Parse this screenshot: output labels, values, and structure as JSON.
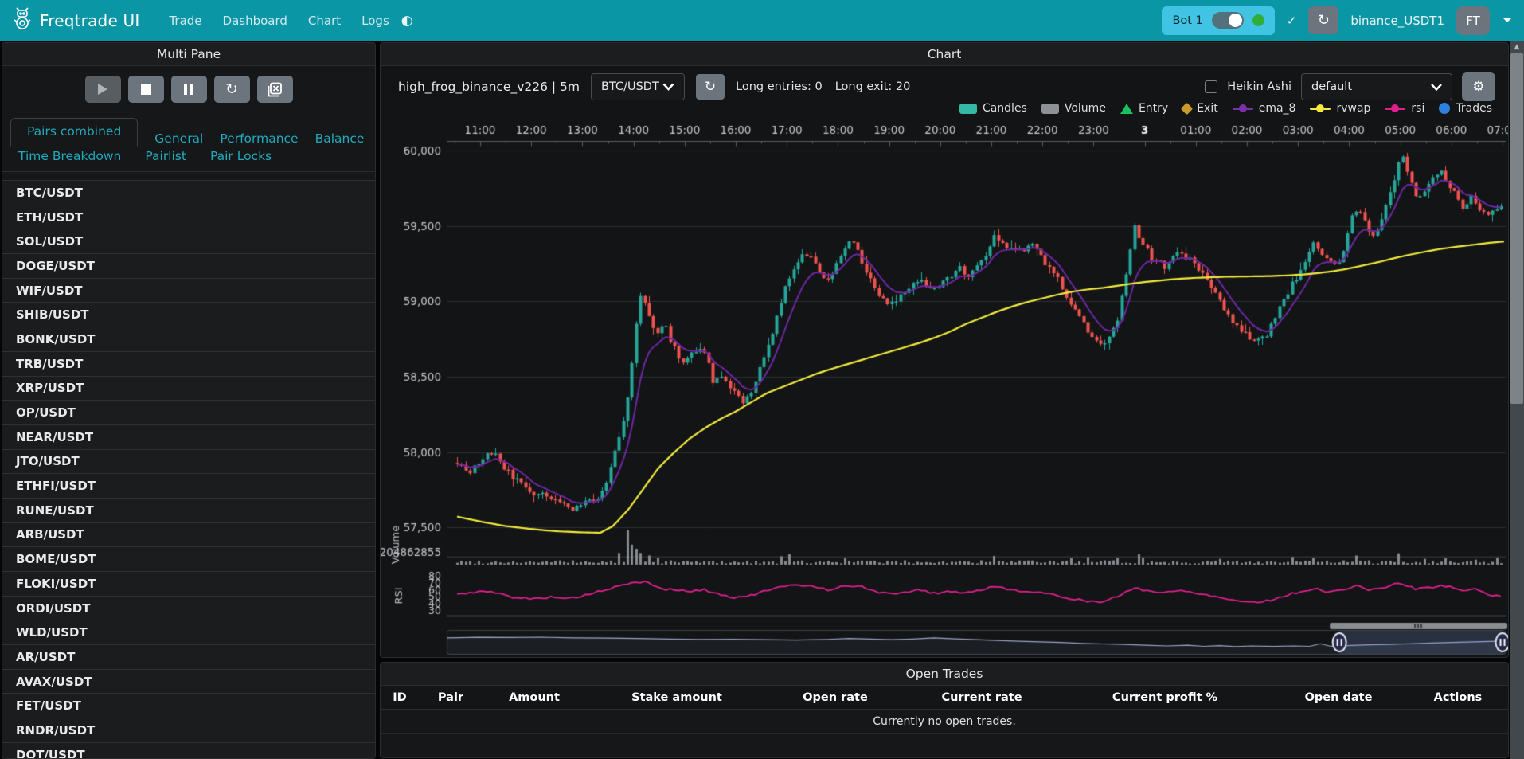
{
  "navbar": {
    "brand": "Freqtrade UI",
    "links": [
      "Trade",
      "Dashboard",
      "Chart",
      "Logs"
    ],
    "theme_icon": "◐",
    "bot_label": "Bot 1",
    "check_icon": "✓",
    "reload_icon": "↻",
    "login": "binance_USDT1",
    "avatar": "FT"
  },
  "left_panel": {
    "title": "Multi Pane",
    "tabs_row1": [
      "Pairs combined",
      "General",
      "Performance",
      "Balance"
    ],
    "tabs_row2": [
      "Time Breakdown",
      "Pairlist",
      "Pair Locks"
    ],
    "active_tab": "Pairs combined",
    "pairs": [
      "BTC/USDT",
      "ETH/USDT",
      "SOL/USDT",
      "DOGE/USDT",
      "WIF/USDT",
      "SHIB/USDT",
      "BONK/USDT",
      "TRB/USDT",
      "XRP/USDT",
      "OP/USDT",
      "NEAR/USDT",
      "JTO/USDT",
      "ETHFI/USDT",
      "RUNE/USDT",
      "ARB/USDT",
      "BOME/USDT",
      "FLOKI/USDT",
      "ORDI/USDT",
      "WLD/USDT",
      "AR/USDT",
      "AVAX/USDT",
      "FET/USDT",
      "RNDR/USDT",
      "DOT/USDT"
    ]
  },
  "chart_panel": {
    "title": "Chart",
    "strategy_title": "high_frog_binance_v226 | 5m",
    "pair_select": "BTC/USDT",
    "reload_icon": "↻",
    "entries_text": "Long entries: 0",
    "exit_text": "Long exit: 20",
    "heikin_label": "Heikin Ashi",
    "plot_select": "default",
    "gear_icon": "⚙",
    "legend": [
      {
        "label": "Candles",
        "shape": "rect",
        "color": "#35b9a6"
      },
      {
        "label": "Volume",
        "shape": "rect",
        "color": "#8e9296"
      },
      {
        "label": "Entry",
        "shape": "triangle",
        "color": "#18c15c"
      },
      {
        "label": "Exit",
        "shape": "diamond",
        "color": "#c99b28"
      },
      {
        "label": "ema_8",
        "shape": "line-dot",
        "color": "#7b2fa8"
      },
      {
        "label": "rvwap",
        "shape": "line-dot",
        "color": "#f2ea3d"
      },
      {
        "label": "rsi",
        "shape": "line-dot",
        "color": "#e01f8f"
      },
      {
        "label": "Trades",
        "shape": "circle",
        "color": "#2f7fe0"
      }
    ]
  },
  "open_trades": {
    "title": "Open Trades",
    "columns": [
      "ID",
      "Pair",
      "Amount",
      "Stake amount",
      "Open rate",
      "Current rate",
      "Current profit %",
      "Open date",
      "Actions"
    ],
    "empty_text": "Currently no open trades."
  },
  "chart_data": {
    "type": "candlestick",
    "pair": "BTC/USDT",
    "timeframe": "5m",
    "time_labels": [
      "11:00",
      "12:00",
      "13:00",
      "14:00",
      "15:00",
      "16:00",
      "17:00",
      "18:00",
      "19:00",
      "20:00",
      "21:00",
      "22:00",
      "23:00",
      "3",
      "01:00",
      "02:00",
      "03:00",
      "04:00",
      "05:00",
      "06:00",
      "07:00"
    ],
    "bold_label_index": 13,
    "price_ticks": [
      {
        "value": 60000,
        "label": "60,000"
      },
      {
        "value": 59500,
        "label": "59,500"
      },
      {
        "value": 59000,
        "label": "59,000"
      },
      {
        "value": 58500,
        "label": "58,500"
      },
      {
        "value": 58000,
        "label": "58,000"
      },
      {
        "value": 57500,
        "label": "57,500"
      }
    ],
    "ylim": [
      57430,
      60060
    ],
    "price_anchors": [
      [
        10.52,
        57950
      ],
      [
        10.8,
        57870
      ],
      [
        11.0,
        57930
      ],
      [
        11.25,
        58020
      ],
      [
        11.5,
        57880
      ],
      [
        11.75,
        57800
      ],
      [
        12.0,
        57730
      ],
      [
        12.3,
        57700
      ],
      [
        12.6,
        57650
      ],
      [
        12.85,
        57620
      ],
      [
        13.1,
        57680
      ],
      [
        13.35,
        57700
      ],
      [
        13.55,
        57880
      ],
      [
        13.7,
        58080
      ],
      [
        13.85,
        58300
      ],
      [
        13.95,
        58520
      ],
      [
        14.05,
        58850
      ],
      [
        14.15,
        59060
      ],
      [
        14.3,
        58900
      ],
      [
        14.45,
        58780
      ],
      [
        14.6,
        58850
      ],
      [
        14.75,
        58720
      ],
      [
        14.95,
        58600
      ],
      [
        15.15,
        58650
      ],
      [
        15.35,
        58720
      ],
      [
        15.55,
        58480
      ],
      [
        15.75,
        58500
      ],
      [
        15.95,
        58400
      ],
      [
        16.15,
        58330
      ],
      [
        16.35,
        58420
      ],
      [
        16.55,
        58650
      ],
      [
        16.75,
        58830
      ],
      [
        16.95,
        59080
      ],
      [
        17.15,
        59220
      ],
      [
        17.35,
        59320
      ],
      [
        17.55,
        59260
      ],
      [
        17.75,
        59120
      ],
      [
        17.95,
        59230
      ],
      [
        18.15,
        59380
      ],
      [
        18.35,
        59400
      ],
      [
        18.55,
        59180
      ],
      [
        18.75,
        59080
      ],
      [
        18.95,
        58980
      ],
      [
        19.15,
        59000
      ],
      [
        19.35,
        59080
      ],
      [
        19.6,
        59160
      ],
      [
        19.85,
        59060
      ],
      [
        20.1,
        59150
      ],
      [
        20.35,
        59220
      ],
      [
        20.6,
        59170
      ],
      [
        20.85,
        59280
      ],
      [
        21.05,
        59440
      ],
      [
        21.25,
        59380
      ],
      [
        21.5,
        59320
      ],
      [
        21.75,
        59380
      ],
      [
        22.0,
        59280
      ],
      [
        22.25,
        59180
      ],
      [
        22.5,
        59000
      ],
      [
        22.75,
        58870
      ],
      [
        23.0,
        58760
      ],
      [
        23.2,
        58700
      ],
      [
        23.45,
        58850
      ],
      [
        23.65,
        59200
      ],
      [
        23.8,
        59500
      ],
      [
        23.95,
        59380
      ],
      [
        24.15,
        59280
      ],
      [
        24.4,
        59230
      ],
      [
        24.65,
        59320
      ],
      [
        24.9,
        59280
      ],
      [
        25.15,
        59180
      ],
      [
        25.4,
        59050
      ],
      [
        25.65,
        58900
      ],
      [
        25.9,
        58800
      ],
      [
        26.15,
        58720
      ],
      [
        26.4,
        58780
      ],
      [
        26.65,
        58980
      ],
      [
        26.9,
        59120
      ],
      [
        27.1,
        59260
      ],
      [
        27.3,
        59380
      ],
      [
        27.5,
        59300
      ],
      [
        27.7,
        59220
      ],
      [
        27.9,
        59340
      ],
      [
        28.05,
        59560
      ],
      [
        28.2,
        59620
      ],
      [
        28.35,
        59480
      ],
      [
        28.5,
        59420
      ],
      [
        28.65,
        59560
      ],
      [
        28.8,
        59720
      ],
      [
        28.95,
        59900
      ],
      [
        29.05,
        59960
      ],
      [
        29.2,
        59800
      ],
      [
        29.35,
        59680
      ],
      [
        29.5,
        59760
      ],
      [
        29.65,
        59830
      ],
      [
        29.8,
        59860
      ],
      [
        29.95,
        59780
      ],
      [
        30.1,
        59680
      ],
      [
        30.25,
        59600
      ],
      [
        30.4,
        59700
      ],
      [
        30.55,
        59620
      ],
      [
        30.7,
        59560
      ],
      [
        30.85,
        59620
      ],
      [
        31.12,
        59640
      ]
    ],
    "rvwap_anchors": [
      [
        10.52,
        57575
      ],
      [
        11.0,
        57540
      ],
      [
        11.5,
        57510
      ],
      [
        12.0,
        57490
      ],
      [
        12.5,
        57475
      ],
      [
        13.0,
        57468
      ],
      [
        13.35,
        57465
      ],
      [
        13.6,
        57510
      ],
      [
        13.9,
        57620
      ],
      [
        14.2,
        57760
      ],
      [
        14.5,
        57900
      ],
      [
        14.8,
        58000
      ],
      [
        15.1,
        58090
      ],
      [
        15.4,
        58160
      ],
      [
        15.7,
        58220
      ],
      [
        16.0,
        58270
      ],
      [
        16.3,
        58330
      ],
      [
        16.6,
        58390
      ],
      [
        16.9,
        58430
      ],
      [
        17.2,
        58470
      ],
      [
        17.5,
        58510
      ],
      [
        17.8,
        58545
      ],
      [
        18.1,
        58575
      ],
      [
        18.4,
        58605
      ],
      [
        18.7,
        58635
      ],
      [
        19.0,
        58665
      ],
      [
        19.3,
        58695
      ],
      [
        19.6,
        58725
      ],
      [
        19.9,
        58760
      ],
      [
        20.2,
        58800
      ],
      [
        20.5,
        58850
      ],
      [
        20.8,
        58890
      ],
      [
        21.1,
        58930
      ],
      [
        21.4,
        58965
      ],
      [
        21.7,
        58995
      ],
      [
        22.0,
        59020
      ],
      [
        22.3,
        59045
      ],
      [
        22.6,
        59065
      ],
      [
        22.9,
        59080
      ],
      [
        23.2,
        59090
      ],
      [
        23.5,
        59105
      ],
      [
        23.8,
        59120
      ],
      [
        24.1,
        59132
      ],
      [
        24.4,
        59142
      ],
      [
        24.7,
        59150
      ],
      [
        25.0,
        59156
      ],
      [
        25.3,
        59160
      ],
      [
        25.6,
        59163
      ],
      [
        25.9,
        59165
      ],
      [
        26.2,
        59166
      ],
      [
        26.5,
        59168
      ],
      [
        26.8,
        59172
      ],
      [
        27.1,
        59178
      ],
      [
        27.4,
        59188
      ],
      [
        27.7,
        59200
      ],
      [
        28.0,
        59218
      ],
      [
        28.3,
        59240
      ],
      [
        28.6,
        59262
      ],
      [
        28.9,
        59288
      ],
      [
        29.2,
        59310
      ],
      [
        29.5,
        59330
      ],
      [
        29.8,
        59348
      ],
      [
        30.1,
        59362
      ],
      [
        30.4,
        59374
      ],
      [
        30.7,
        59386
      ],
      [
        31.12,
        59400
      ]
    ],
    "rsi_anchors": [
      [
        10.52,
        53
      ],
      [
        11.0,
        58
      ],
      [
        11.3,
        56
      ],
      [
        11.6,
        50
      ],
      [
        12.0,
        47
      ],
      [
        12.4,
        50
      ],
      [
        12.8,
        48
      ],
      [
        13.2,
        55
      ],
      [
        13.6,
        63
      ],
      [
        14.0,
        70
      ],
      [
        14.25,
        72
      ],
      [
        14.5,
        62
      ],
      [
        14.8,
        60
      ],
      [
        15.1,
        58
      ],
      [
        15.4,
        60
      ],
      [
        15.7,
        53
      ],
      [
        16.0,
        49
      ],
      [
        16.3,
        52
      ],
      [
        16.6,
        59
      ],
      [
        16.9,
        64
      ],
      [
        17.2,
        67
      ],
      [
        17.5,
        66
      ],
      [
        17.8,
        60
      ],
      [
        18.1,
        65
      ],
      [
        18.4,
        66
      ],
      [
        18.7,
        58
      ],
      [
        19.0,
        54
      ],
      [
        19.3,
        57
      ],
      [
        19.6,
        60
      ],
      [
        19.9,
        55
      ],
      [
        20.2,
        58
      ],
      [
        20.5,
        56
      ],
      [
        20.8,
        60
      ],
      [
        21.1,
        65
      ],
      [
        21.4,
        60
      ],
      [
        21.7,
        58
      ],
      [
        22.0,
        55
      ],
      [
        22.3,
        52
      ],
      [
        22.6,
        47
      ],
      [
        22.9,
        44
      ],
      [
        23.2,
        42
      ],
      [
        23.5,
        52
      ],
      [
        23.8,
        63
      ],
      [
        24.1,
        58
      ],
      [
        24.4,
        56
      ],
      [
        24.7,
        59
      ],
      [
        25.0,
        56
      ],
      [
        25.3,
        52
      ],
      [
        25.6,
        47
      ],
      [
        25.9,
        44
      ],
      [
        26.2,
        42
      ],
      [
        26.5,
        46
      ],
      [
        26.8,
        53
      ],
      [
        27.1,
        58
      ],
      [
        27.3,
        62
      ],
      [
        27.6,
        57
      ],
      [
        27.9,
        60
      ],
      [
        28.1,
        66
      ],
      [
        28.4,
        60
      ],
      [
        28.7,
        64
      ],
      [
        29.0,
        70
      ],
      [
        29.3,
        61
      ],
      [
        29.6,
        64
      ],
      [
        29.9,
        66
      ],
      [
        30.2,
        59
      ],
      [
        30.5,
        61
      ],
      [
        30.8,
        52
      ],
      [
        31.12,
        50
      ]
    ],
    "rsi_ticks": [
      80,
      70,
      60,
      50,
      40,
      30
    ],
    "volume_axis_label": "204862855",
    "volume_max": 205,
    "volume_spikes": [
      [
        13.75,
        70
      ],
      [
        13.9,
        205
      ],
      [
        13.95,
        120
      ],
      [
        14.05,
        95
      ],
      [
        14.15,
        70
      ],
      [
        14.3,
        55
      ],
      [
        14.5,
        40
      ],
      [
        16.9,
        50
      ],
      [
        17.05,
        62
      ],
      [
        18.1,
        40
      ],
      [
        21.05,
        52
      ],
      [
        22.55,
        38
      ],
      [
        22.9,
        45
      ],
      [
        23.45,
        40
      ],
      [
        23.85,
        62
      ],
      [
        24.0,
        42
      ],
      [
        25.5,
        35
      ],
      [
        26.9,
        46
      ],
      [
        27.3,
        40
      ],
      [
        28.1,
        55
      ],
      [
        29.0,
        68
      ],
      [
        29.5,
        35
      ],
      [
        29.9,
        38
      ],
      [
        30.5,
        30
      ],
      [
        30.9,
        42
      ]
    ],
    "pane_labels": {
      "volume": "Volume",
      "rsi": "RSI"
    },
    "navigator": {
      "points": [
        [
          0,
          0.3
        ],
        [
          0.03,
          0.27
        ],
        [
          0.06,
          0.28
        ],
        [
          0.09,
          0.26
        ],
        [
          0.12,
          0.3
        ],
        [
          0.15,
          0.31
        ],
        [
          0.18,
          0.33
        ],
        [
          0.21,
          0.36
        ],
        [
          0.24,
          0.38
        ],
        [
          0.27,
          0.37
        ],
        [
          0.3,
          0.4
        ],
        [
          0.33,
          0.42
        ],
        [
          0.36,
          0.38
        ],
        [
          0.38,
          0.33
        ],
        [
          0.4,
          0.36
        ],
        [
          0.42,
          0.4
        ],
        [
          0.44,
          0.36
        ],
        [
          0.46,
          0.3
        ],
        [
          0.48,
          0.35
        ],
        [
          0.5,
          0.4
        ],
        [
          0.52,
          0.44
        ],
        [
          0.54,
          0.48
        ],
        [
          0.56,
          0.52
        ],
        [
          0.58,
          0.55
        ],
        [
          0.6,
          0.6
        ],
        [
          0.62,
          0.63
        ],
        [
          0.64,
          0.66
        ],
        [
          0.66,
          0.7
        ],
        [
          0.68,
          0.74
        ],
        [
          0.7,
          0.7
        ],
        [
          0.715,
          0.76
        ],
        [
          0.73,
          0.72
        ],
        [
          0.745,
          0.78
        ],
        [
          0.76,
          0.74
        ],
        [
          0.78,
          0.77
        ],
        [
          0.8,
          0.74
        ],
        [
          0.815,
          0.76
        ],
        [
          0.825,
          0.62
        ],
        [
          0.835,
          0.76
        ],
        [
          0.85,
          0.72
        ],
        [
          0.87,
          0.68
        ],
        [
          0.89,
          0.66
        ],
        [
          0.91,
          0.62
        ],
        [
          0.93,
          0.58
        ],
        [
          0.95,
          0.55
        ],
        [
          0.97,
          0.52
        ],
        [
          1,
          0.47
        ]
      ],
      "window": [
        0.843,
        0.997
      ]
    },
    "colors": {
      "up": "#26a69a",
      "down": "#ef5350",
      "ema": "#6f27a5",
      "rvwap": "#f2ea3d",
      "rsi": "#e01f8f",
      "volume": "#9ba0a4",
      "grid": "#2d3033",
      "axis": "#5a5f63",
      "label": "#c6cacd",
      "nav_line": "#9fa6c8",
      "nav_window": "rgba(125,155,215,0.22)"
    }
  }
}
